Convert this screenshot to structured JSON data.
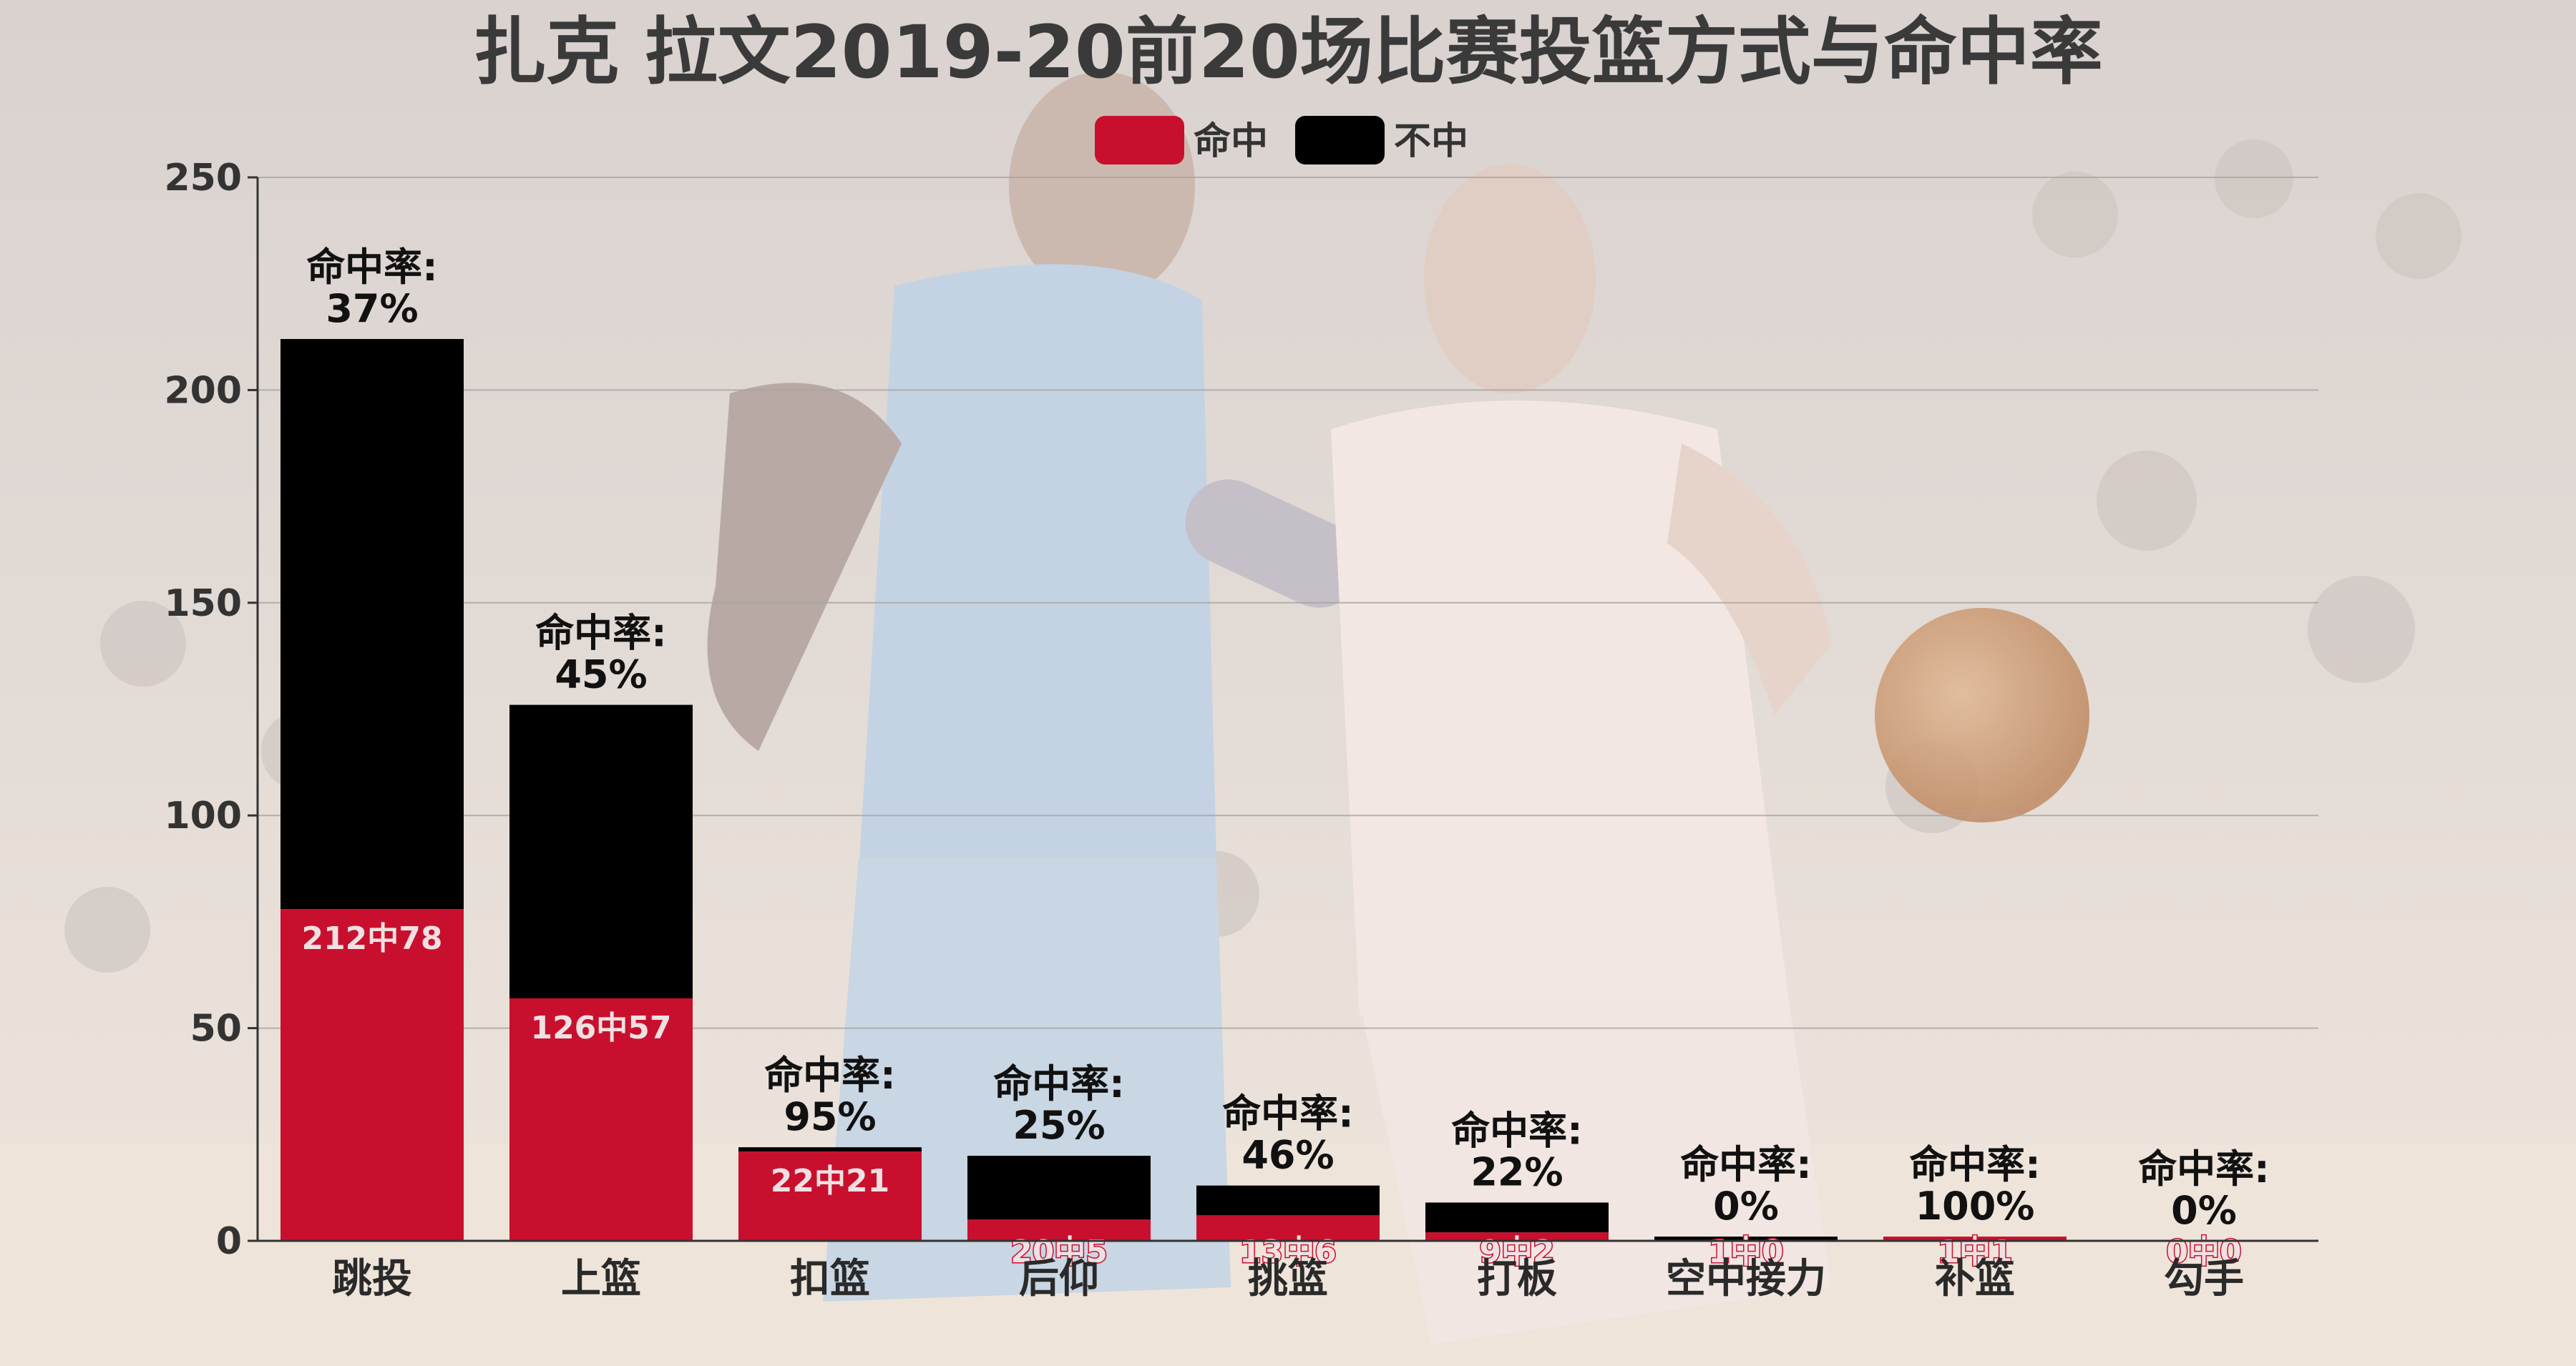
{
  "chart_data": {
    "type": "bar",
    "stacked": true,
    "title": "扎克 拉文2019-20前20场比赛投篮方式与命中率",
    "categories": [
      "跳投",
      "上篮",
      "扣篮",
      "后仰",
      "挑篮",
      "打板",
      "空中接力",
      "补篮",
      "勾手"
    ],
    "series": [
      {
        "name": "命中",
        "color": "#c8102e",
        "values": [
          78,
          57,
          21,
          5,
          6,
          2,
          0,
          1,
          0
        ]
      },
      {
        "name": "不中",
        "color": "#000000",
        "values": [
          134,
          69,
          1,
          15,
          7,
          7,
          1,
          0,
          0
        ]
      }
    ],
    "attempts": [
      212,
      126,
      22,
      20,
      13,
      9,
      1,
      1,
      0
    ],
    "bar_labels": [
      "212中78",
      "126中57",
      "22中21",
      "20中5",
      "13中6",
      "9中2",
      "1中0",
      "1中1",
      "0中0"
    ],
    "rate_prefix": "命中率:",
    "rates": [
      "37%",
      "45%",
      "95%",
      "25%",
      "46%",
      "22%",
      "0%",
      "100%",
      "0%"
    ],
    "ylim": [
      0,
      250
    ],
    "yticks": [
      0,
      50,
      100,
      150,
      200,
      250
    ],
    "grid": true,
    "legend_position": "top-center"
  }
}
